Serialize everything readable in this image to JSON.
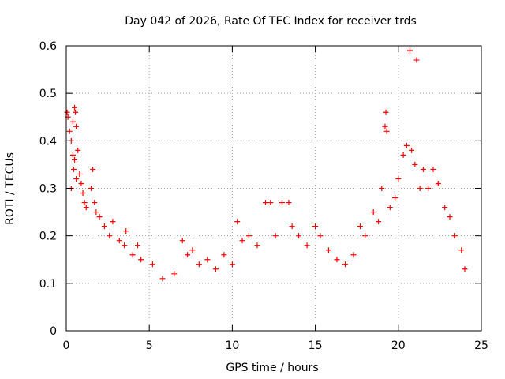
{
  "chart_data": {
    "type": "scatter",
    "title": "Day 042 of 2026, Rate Of TEC Index for receiver trds",
    "xlabel": "GPS time / hours",
    "ylabel": "ROTI / TECUs",
    "xlim": [
      0,
      25
    ],
    "ylim": [
      0,
      0.6
    ],
    "xticks": [
      0,
      5,
      10,
      15,
      20,
      25
    ],
    "xtick_labels": [
      "0",
      "5",
      "10",
      "15",
      "20",
      "25"
    ],
    "yticks": [
      0,
      0.1,
      0.2,
      0.3,
      0.4,
      0.5,
      0.6
    ],
    "ytick_labels": [
      "0",
      "0.1",
      "0.2",
      "0.3",
      "0.4",
      "0.5",
      "0.6"
    ],
    "grid": true,
    "marker": "+",
    "series": [
      {
        "name": "ROTI",
        "color": "#ff0000",
        "points": [
          [
            0.05,
            0.46
          ],
          [
            0.1,
            0.45
          ],
          [
            0.2,
            0.42
          ],
          [
            0.3,
            0.4
          ],
          [
            0.4,
            0.44
          ],
          [
            0.5,
            0.47
          ],
          [
            0.55,
            0.46
          ],
          [
            0.6,
            0.43
          ],
          [
            0.7,
            0.38
          ],
          [
            0.4,
            0.37
          ],
          [
            0.5,
            0.36
          ],
          [
            0.45,
            0.34
          ],
          [
            0.6,
            0.32
          ],
          [
            0.3,
            0.3
          ],
          [
            0.8,
            0.33
          ],
          [
            0.9,
            0.31
          ],
          [
            1.0,
            0.29
          ],
          [
            1.1,
            0.27
          ],
          [
            1.2,
            0.26
          ],
          [
            1.5,
            0.3
          ],
          [
            1.6,
            0.34
          ],
          [
            1.7,
            0.27
          ],
          [
            1.8,
            0.25
          ],
          [
            2.0,
            0.24
          ],
          [
            2.3,
            0.22
          ],
          [
            2.6,
            0.2
          ],
          [
            2.8,
            0.23
          ],
          [
            3.2,
            0.19
          ],
          [
            3.5,
            0.18
          ],
          [
            3.6,
            0.21
          ],
          [
            4.0,
            0.16
          ],
          [
            4.3,
            0.18
          ],
          [
            4.5,
            0.15
          ],
          [
            5.2,
            0.14
          ],
          [
            5.8,
            0.11
          ],
          [
            6.5,
            0.12
          ],
          [
            7.0,
            0.19
          ],
          [
            7.3,
            0.16
          ],
          [
            7.6,
            0.17
          ],
          [
            8.0,
            0.14
          ],
          [
            8.5,
            0.15
          ],
          [
            9.0,
            0.13
          ],
          [
            9.5,
            0.16
          ],
          [
            10.0,
            0.14
          ],
          [
            10.3,
            0.23
          ],
          [
            10.6,
            0.19
          ],
          [
            11.0,
            0.2
          ],
          [
            11.5,
            0.18
          ],
          [
            12.0,
            0.27
          ],
          [
            12.3,
            0.27
          ],
          [
            12.6,
            0.2
          ],
          [
            13.0,
            0.27
          ],
          [
            13.4,
            0.27
          ],
          [
            13.6,
            0.22
          ],
          [
            14.0,
            0.2
          ],
          [
            14.5,
            0.18
          ],
          [
            15.0,
            0.22
          ],
          [
            15.3,
            0.2
          ],
          [
            15.8,
            0.17
          ],
          [
            16.3,
            0.15
          ],
          [
            16.8,
            0.14
          ],
          [
            17.3,
            0.16
          ],
          [
            17.7,
            0.22
          ],
          [
            18.0,
            0.2
          ],
          [
            18.5,
            0.25
          ],
          [
            18.8,
            0.23
          ],
          [
            19.0,
            0.3
          ],
          [
            19.2,
            0.43
          ],
          [
            19.25,
            0.46
          ],
          [
            19.3,
            0.42
          ],
          [
            19.5,
            0.26
          ],
          [
            19.8,
            0.28
          ],
          [
            20.0,
            0.32
          ],
          [
            20.3,
            0.37
          ],
          [
            20.5,
            0.39
          ],
          [
            20.8,
            0.38
          ],
          [
            21.0,
            0.35
          ],
          [
            20.7,
            0.59
          ],
          [
            21.1,
            0.57
          ],
          [
            21.3,
            0.3
          ],
          [
            21.5,
            0.34
          ],
          [
            21.8,
            0.3
          ],
          [
            22.1,
            0.34
          ],
          [
            22.4,
            0.31
          ],
          [
            22.8,
            0.26
          ],
          [
            23.1,
            0.24
          ],
          [
            23.4,
            0.2
          ],
          [
            23.8,
            0.17
          ],
          [
            24.0,
            0.13
          ]
        ]
      }
    ]
  }
}
